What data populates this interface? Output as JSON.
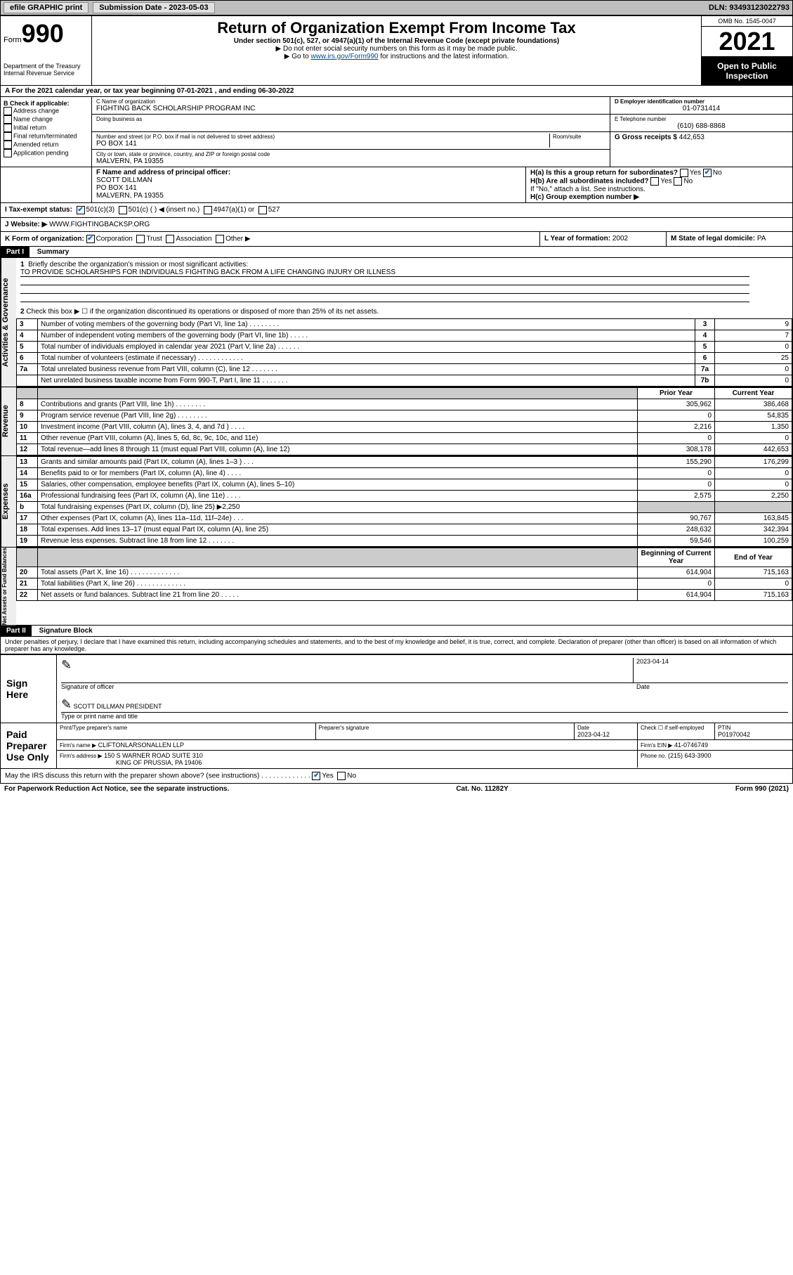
{
  "topbar": {
    "efile": "efile GRAPHIC print",
    "subdate_lbl": "Submission Date - 2023-05-03",
    "dln": "DLN: 93493123022793"
  },
  "header": {
    "form_small": "Form",
    "form_big": "990",
    "title": "Return of Organization Exempt From Income Tax",
    "sub1": "Under section 501(c), 527, or 4947(a)(1) of the Internal Revenue Code (except private foundations)",
    "sub2": "▶ Do not enter social security numbers on this form as it may be made public.",
    "sub3_pre": "▶ Go to ",
    "sub3_link": "www.irs.gov/Form990",
    "sub3_post": " for instructions and the latest information.",
    "dept": "Department of the Treasury\nInternal Revenue Service",
    "omb": "OMB No. 1545-0047",
    "year": "2021",
    "open": "Open to Public Inspection"
  },
  "a_line": "A For the 2021 calendar year, or tax year beginning 07-01-2021   , and ending 06-30-2022",
  "b": {
    "hdr": "B Check if applicable:",
    "items": [
      "Address change",
      "Name change",
      "Initial return",
      "Final return/terminated",
      "Amended return",
      "Application pending"
    ]
  },
  "c": {
    "lbl": "C Name of organization",
    "name": "FIGHTING BACK SCHOLARSHIP PROGRAM INC",
    "dba_lbl": "Doing business as",
    "street_lbl": "Number and street (or P.O. box if mail is not delivered to street address)",
    "room_lbl": "Room/suite",
    "street": "PO BOX 141",
    "city_lbl": "City or town, state or province, country, and ZIP or foreign postal code",
    "city": "MALVERN, PA  19355"
  },
  "d": {
    "lbl": "D Employer identification number",
    "val": "01-0731414"
  },
  "e": {
    "lbl": "E Telephone number",
    "val": "(610) 688-8868"
  },
  "g": {
    "lbl": "G Gross receipts $",
    "val": "442,653"
  },
  "f": {
    "lbl": "F Name and address of principal officer:",
    "name": "SCOTT DILLMAN",
    "addr1": "PO BOX 141",
    "addr2": "MALVERN, PA  19355"
  },
  "h": {
    "a": "H(a)  Is this a group return for subordinates?",
    "a_yes": "Yes",
    "a_no": "No",
    "b": "H(b)  Are all subordinates included?",
    "b_yes": "Yes",
    "b_no": "No",
    "b_note": "If \"No,\" attach a list. See instructions.",
    "c": "H(c)  Group exemption number ▶"
  },
  "i": {
    "lbl": "I   Tax-exempt status:",
    "c3": "501(c)(3)",
    "c": "501(c) (   ) ◀ (insert no.)",
    "a4947": "4947(a)(1) or",
    "s527": "527"
  },
  "j": {
    "lbl": "J   Website: ▶",
    "val": "WWW.FIGHTINGBACKSP.ORG"
  },
  "k": {
    "lbl": "K Form of organization:",
    "corp": "Corporation",
    "trust": "Trust",
    "assoc": "Association",
    "other": "Other ▶"
  },
  "l": {
    "lbl": "L Year of formation:",
    "val": "2002"
  },
  "m": {
    "lbl": "M State of legal domicile:",
    "val": "PA"
  },
  "part1": {
    "hdr": "Part I",
    "title": "Summary",
    "l1_lbl": "Briefly describe the organization's mission or most significant activities:",
    "l1_val": "TO PROVIDE SCHOLARSHIPS FOR INDIVIDUALS FIGHTING BACK FROM A LIFE CHANGING INJURY OR ILLNESS",
    "l2": "Check this box ▶ ☐  if the organization discontinued its operations or disposed of more than 25% of its net assets.",
    "sections": {
      "gov": "Activities & Governance",
      "rev": "Revenue",
      "exp": "Expenses",
      "net": "Net Assets or Fund Balances"
    },
    "gov_lines": [
      {
        "n": "3",
        "t": "Number of voting members of the governing body (Part VI, line 1a)  .   .   .   .   .   .   .   .",
        "box": "3",
        "v": "9"
      },
      {
        "n": "4",
        "t": "Number of independent voting members of the governing body (Part VI, line 1b)  .   .   .   .   .",
        "box": "4",
        "v": "7"
      },
      {
        "n": "5",
        "t": "Total number of individuals employed in calendar year 2021 (Part V, line 2a)  .   .   .   .   .   .",
        "box": "5",
        "v": "0"
      },
      {
        "n": "6",
        "t": "Total number of volunteers (estimate if necessary)   .   .   .   .   .   .   .   .   .   .   .   .",
        "box": "6",
        "v": "25"
      },
      {
        "n": "7a",
        "t": "Total unrelated business revenue from Part VIII, column (C), line 12   .   .   .   .   .   .   .",
        "box": "7a",
        "v": "0"
      },
      {
        "n": "",
        "t": "Net unrelated business taxable income from Form 990-T, Part I, line 11   .   .   .   .   .   .   .",
        "box": "7b",
        "v": "0"
      }
    ],
    "col_hdr": {
      "prior": "Prior Year",
      "curr": "Current Year"
    },
    "rev_lines": [
      {
        "n": "8",
        "t": "Contributions and grants (Part VIII, line 1h)   .   .   .   .   .   .   .   .",
        "p": "305,962",
        "c": "386,468"
      },
      {
        "n": "9",
        "t": "Program service revenue (Part VIII, line 2g)   .   .   .   .   .   .   .   .",
        "p": "0",
        "c": "54,835"
      },
      {
        "n": "10",
        "t": "Investment income (Part VIII, column (A), lines 3, 4, and 7d )   .   .   .   .",
        "p": "2,216",
        "c": "1,350"
      },
      {
        "n": "11",
        "t": "Other revenue (Part VIII, column (A), lines 5, 6d, 8c, 9c, 10c, and 11e)",
        "p": "0",
        "c": "0"
      },
      {
        "n": "12",
        "t": "Total revenue—add lines 8 through 11 (must equal Part VIII, column (A), line 12)",
        "p": "308,178",
        "c": "442,653"
      }
    ],
    "exp_lines": [
      {
        "n": "13",
        "t": "Grants and similar amounts paid (Part IX, column (A), lines 1–3 )   .   .   .",
        "p": "155,290",
        "c": "176,299"
      },
      {
        "n": "14",
        "t": "Benefits paid to or for members (Part IX, column (A), line 4)   .   .   .   .",
        "p": "0",
        "c": "0"
      },
      {
        "n": "15",
        "t": "Salaries, other compensation, employee benefits (Part IX, column (A), lines 5–10)",
        "p": "0",
        "c": "0"
      },
      {
        "n": "16a",
        "t": "Professional fundraising fees (Part IX, column (A), line 11e)   .   .   .   .",
        "p": "2,575",
        "c": "2,250"
      },
      {
        "n": "b",
        "t": "Total fundraising expenses (Part IX, column (D), line 25) ▶2,250",
        "p": "",
        "c": "",
        "shade": true
      },
      {
        "n": "17",
        "t": "Other expenses (Part IX, column (A), lines 11a–11d, 11f–24e)   .   .   .",
        "p": "90,767",
        "c": "163,845"
      },
      {
        "n": "18",
        "t": "Total expenses. Add lines 13–17 (must equal Part IX, column (A), line 25)",
        "p": "248,632",
        "c": "342,394"
      },
      {
        "n": "19",
        "t": "Revenue less expenses. Subtract line 18 from line 12   .   .   .   .   .   .   .",
        "p": "59,546",
        "c": "100,259"
      }
    ],
    "net_hdr": {
      "beg": "Beginning of Current Year",
      "end": "End of Year"
    },
    "net_lines": [
      {
        "n": "20",
        "t": "Total assets (Part X, line 16)   .   .   .   .   .   .   .   .   .   .   .   .   .",
        "p": "614,904",
        "c": "715,163"
      },
      {
        "n": "21",
        "t": "Total liabilities (Part X, line 26)  .   .   .   .   .   .   .   .   .   .   .   .   .",
        "p": "0",
        "c": "0"
      },
      {
        "n": "22",
        "t": "Net assets or fund balances. Subtract line 21 from line 20   .   .   .   .   .",
        "p": "614,904",
        "c": "715,163"
      }
    ]
  },
  "part2": {
    "hdr": "Part II",
    "title": "Signature Block",
    "penalty": "Under penalties of perjury, I declare that I have examined this return, including accompanying schedules and statements, and to the best of my knowledge and belief, it is true, correct, and complete. Declaration of preparer (other than officer) is based on all information of which preparer has any knowledge.",
    "sign_here": "Sign Here",
    "sig_officer": "Signature of officer",
    "sig_date": "2023-04-14",
    "sig_date_lbl": "Date",
    "officer_name": "SCOTT DILLMAN  PRESIDENT",
    "officer_name_lbl": "Type or print name and title",
    "paid": "Paid Preparer Use Only",
    "prep_name_lbl": "Print/Type preparer's name",
    "prep_sig_lbl": "Preparer's signature",
    "prep_date_lbl": "Date",
    "prep_date": "2023-04-12",
    "self_lbl": "Check ☐ if self-employed",
    "ptin_lbl": "PTIN",
    "ptin": "P01970042",
    "firm_lbl": "Firm's name    ▶",
    "firm": "CLIFTONLARSONALLEN LLP",
    "ein_lbl": "Firm's EIN ▶",
    "ein": "41-0746749",
    "addr_lbl": "Firm's address ▶",
    "addr1": "150 S WARNER ROAD SUITE 310",
    "addr2": "KING OF PRUSSIA, PA  19406",
    "phone_lbl": "Phone no.",
    "phone": "(215) 643-3900",
    "may": "May the IRS discuss this return with the preparer shown above? (see instructions)   .   .   .   .   .   .   .   .   .   .   .   .   .",
    "may_yes": "Yes",
    "may_no": "No"
  },
  "footer": {
    "pra": "For Paperwork Reduction Act Notice, see the separate instructions.",
    "cat": "Cat. No. 11282Y",
    "form": "Form 990 (2021)"
  },
  "colors": {
    "link": "#004b8d",
    "check": "#0066cc"
  }
}
